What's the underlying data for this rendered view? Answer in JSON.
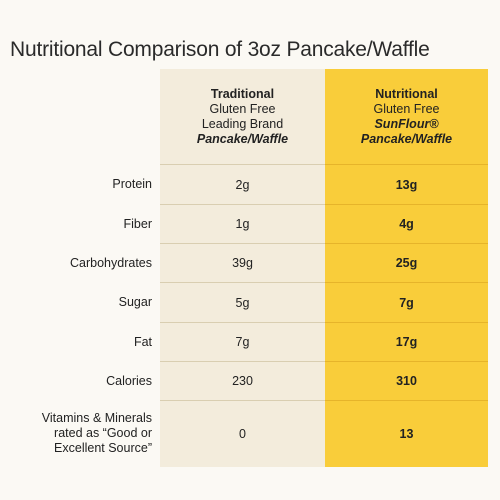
{
  "title": "Nutritional Comparison of 3oz Pancake/Waffle",
  "columns": {
    "traditional": [
      "Traditional",
      "Gluten Free",
      "Leading Brand",
      "Pancake/Waffle"
    ],
    "sunflour": [
      "Nutritional",
      "Gluten Free",
      "SunFlour®",
      "Pancake/Waffle"
    ]
  },
  "rows": [
    {
      "label": "Protein",
      "traditional": "2g",
      "sunflour": "13g"
    },
    {
      "label": "Fiber",
      "traditional": "1g",
      "sunflour": "4g"
    },
    {
      "label": "Carbohydrates",
      "traditional": "39g",
      "sunflour": "25g"
    },
    {
      "label": "Sugar",
      "traditional": "5g",
      "sunflour": "7g"
    },
    {
      "label": "Fat",
      "traditional": "7g",
      "sunflour": "17g"
    },
    {
      "label": "Calories",
      "traditional": "230",
      "sunflour": "310"
    },
    {
      "label_lines": [
        "Vitamins & Minerals",
        "rated as “Good or",
        "Excellent Source”"
      ],
      "traditional": "0",
      "sunflour": "13"
    }
  ],
  "colors": {
    "background": "#fbf9f4",
    "traditional_column": "#f3ecdc",
    "sunflour_column": "#f9cd3a"
  }
}
